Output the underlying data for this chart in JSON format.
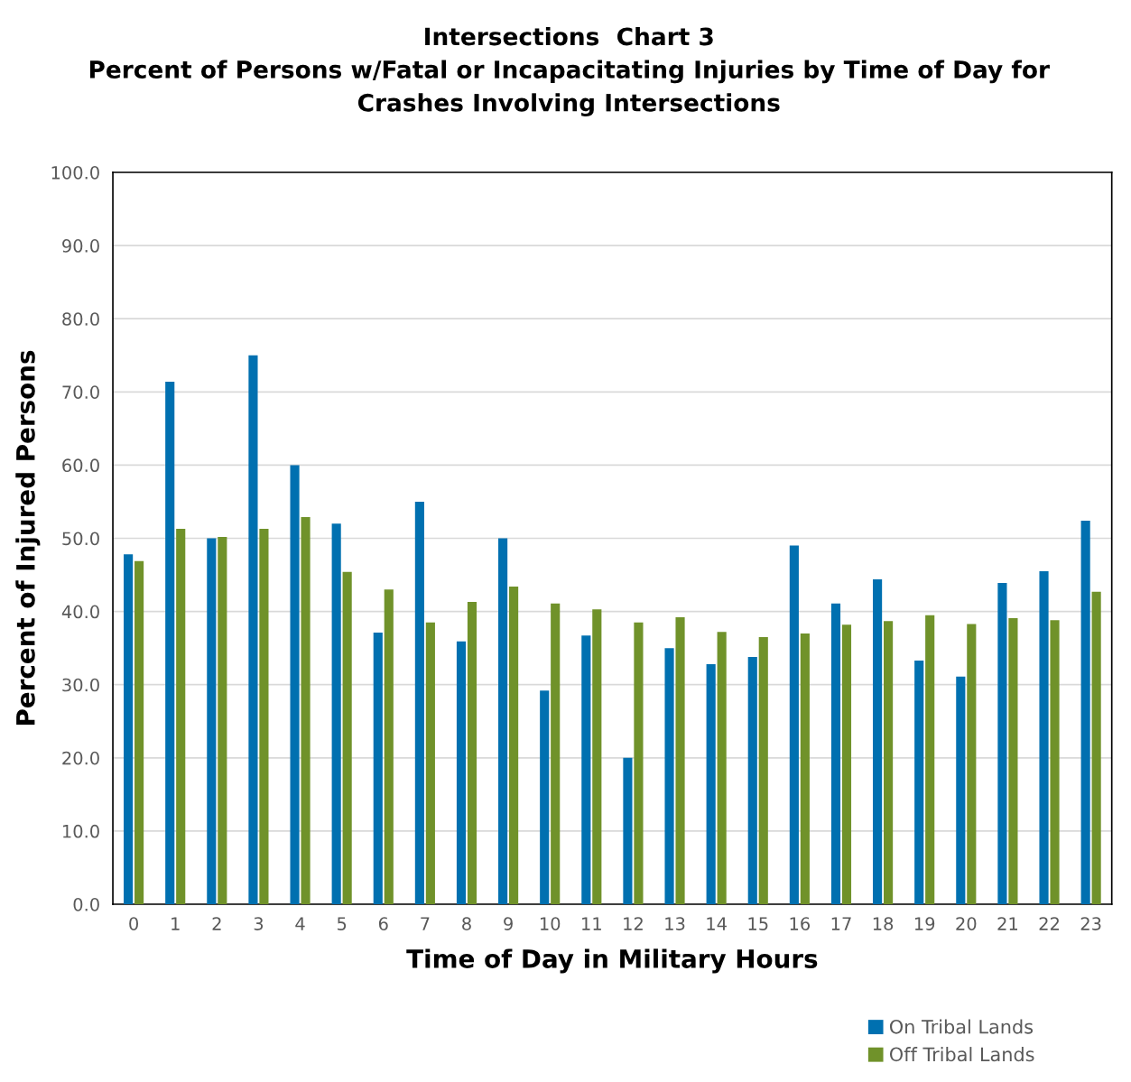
{
  "chart_data": {
    "type": "bar",
    "title": "Intersections  Chart 3\nPercent of Persons w/Fatal or Incapacitating Injuries by Time of Day for\nCrashes Involving Intersections",
    "xlabel": "Time of Day in Military Hours",
    "ylabel": "Percent of Injured Persons",
    "categories": [
      "0",
      "1",
      "2",
      "3",
      "4",
      "5",
      "6",
      "7",
      "8",
      "9",
      "10",
      "11",
      "12",
      "13",
      "14",
      "15",
      "16",
      "17",
      "18",
      "19",
      "20",
      "21",
      "22",
      "23"
    ],
    "series": [
      {
        "name": "On Tribal Lands",
        "color": "#0070b0",
        "values": [
          47.8,
          71.4,
          50.0,
          75.0,
          60.0,
          52.0,
          37.1,
          55.0,
          35.9,
          50.0,
          29.2,
          36.7,
          20.0,
          35.0,
          32.8,
          33.8,
          49.0,
          41.1,
          44.4,
          33.3,
          31.1,
          43.9,
          45.5,
          52.4
        ]
      },
      {
        "name": "Off Tribal Lands",
        "color": "#70922a",
        "values": [
          46.9,
          51.3,
          50.2,
          51.3,
          52.9,
          45.4,
          43.0,
          38.5,
          41.3,
          43.4,
          41.1,
          40.3,
          38.5,
          39.2,
          37.2,
          36.5,
          37.0,
          38.2,
          38.7,
          39.5,
          38.3,
          39.1,
          38.8,
          42.7
        ]
      }
    ],
    "ylim": [
      0,
      100
    ],
    "yticks": [
      {
        "value": 0,
        "label": "0.0"
      },
      {
        "value": 10,
        "label": "10.0"
      },
      {
        "value": 20,
        "label": "20.0"
      },
      {
        "value": 30,
        "label": "30.0"
      },
      {
        "value": 40,
        "label": "40.0"
      },
      {
        "value": 50,
        "label": "50.0"
      },
      {
        "value": 60,
        "label": "60.0"
      },
      {
        "value": 70,
        "label": "70.0"
      },
      {
        "value": 80,
        "label": "80.0"
      },
      {
        "value": 90,
        "label": "90.0"
      },
      {
        "value": 100,
        "label": "100.0"
      }
    ],
    "grid": "y",
    "legend": "bottom right"
  }
}
